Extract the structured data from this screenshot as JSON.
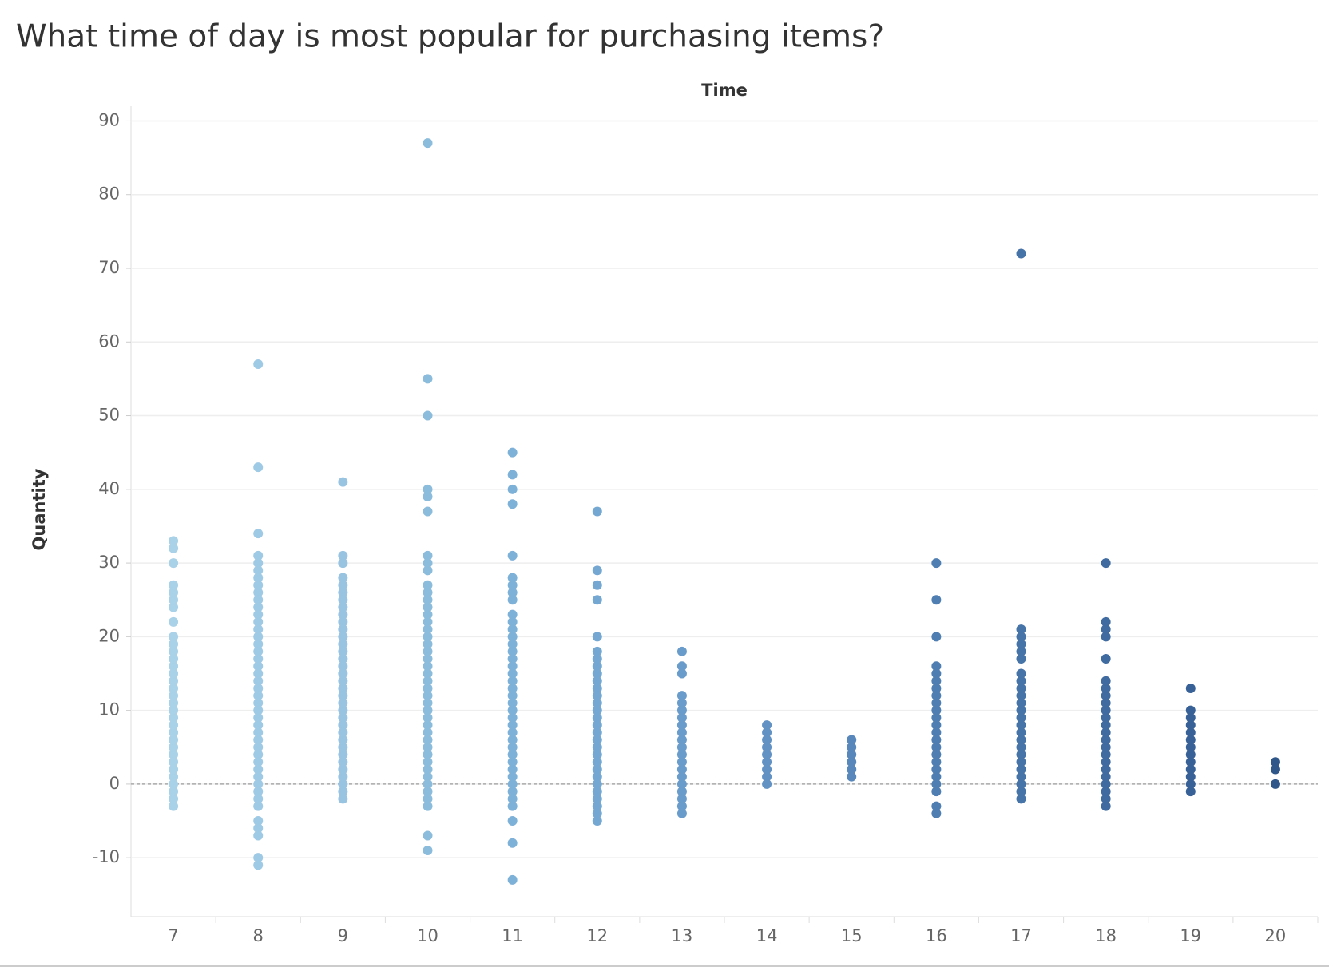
{
  "chart_data": {
    "type": "strip",
    "title": "What time of day is most popular for purchasing items?",
    "x_label": "Time",
    "y_label": "Quantity",
    "categories": [
      "7",
      "8",
      "9",
      "10",
      "11",
      "12",
      "13",
      "14",
      "15",
      "16",
      "17",
      "18",
      "19",
      "20"
    ],
    "colors": [
      "#a9d1e8",
      "#9fcae5",
      "#98c4e1",
      "#8bbcdc",
      "#7eb1d8",
      "#74a8d2",
      "#6a9ccb",
      "#6192c3",
      "#5888bb",
      "#4f7eb2",
      "#4674a9",
      "#3f6ba0",
      "#386297",
      "#2f5789"
    ],
    "values": [
      [
        -3,
        -2,
        -1,
        0,
        1,
        2,
        3,
        4,
        5,
        6,
        7,
        8,
        9,
        10,
        11,
        12,
        13,
        14,
        15,
        16,
        17,
        18,
        19,
        20,
        22,
        24,
        25,
        26,
        27,
        30,
        32,
        33
      ],
      [
        -11,
        -10,
        -7,
        -6,
        -5,
        -3,
        -2,
        -1,
        0,
        1,
        2,
        3,
        4,
        5,
        6,
        7,
        8,
        9,
        10,
        11,
        12,
        13,
        14,
        15,
        16,
        17,
        18,
        19,
        20,
        21,
        22,
        23,
        24,
        25,
        26,
        27,
        28,
        29,
        30,
        31,
        34,
        43,
        57
      ],
      [
        -2,
        -1,
        0,
        1,
        2,
        3,
        4,
        5,
        6,
        7,
        8,
        9,
        10,
        11,
        12,
        13,
        14,
        15,
        16,
        17,
        18,
        19,
        20,
        21,
        22,
        23,
        24,
        25,
        26,
        27,
        28,
        30,
        31,
        41
      ],
      [
        -9,
        -7,
        -3,
        -2,
        -1,
        0,
        1,
        2,
        3,
        4,
        5,
        6,
        7,
        8,
        9,
        10,
        11,
        12,
        13,
        14,
        15,
        16,
        17,
        18,
        19,
        20,
        21,
        22,
        23,
        24,
        25,
        26,
        27,
        29,
        30,
        31,
        37,
        39,
        40,
        50,
        55,
        87
      ],
      [
        -13,
        -8,
        -5,
        -3,
        -2,
        -1,
        0,
        1,
        2,
        3,
        4,
        5,
        6,
        7,
        8,
        9,
        10,
        11,
        12,
        13,
        14,
        15,
        16,
        17,
        18,
        19,
        20,
        21,
        22,
        23,
        25,
        26,
        27,
        28,
        31,
        38,
        40,
        42,
        45
      ],
      [
        -5,
        -4,
        -3,
        -2,
        -1,
        0,
        1,
        2,
        3,
        4,
        5,
        6,
        7,
        8,
        9,
        10,
        11,
        12,
        13,
        14,
        15,
        16,
        17,
        18,
        20,
        25,
        27,
        29,
        37
      ],
      [
        -4,
        -3,
        -2,
        -1,
        0,
        1,
        2,
        3,
        4,
        5,
        6,
        7,
        8,
        9,
        10,
        11,
        12,
        15,
        16,
        18
      ],
      [
        0,
        1,
        2,
        3,
        4,
        5,
        6,
        7,
        8
      ],
      [
        1,
        2,
        3,
        4,
        5,
        6
      ],
      [
        -4,
        -3,
        -1,
        0,
        1,
        2,
        3,
        4,
        5,
        6,
        7,
        8,
        9,
        10,
        11,
        12,
        13,
        14,
        15,
        16,
        20,
        25,
        30
      ],
      [
        -2,
        -1,
        0,
        1,
        2,
        3,
        4,
        5,
        6,
        7,
        8,
        9,
        10,
        11,
        12,
        13,
        14,
        15,
        17,
        18,
        19,
        20,
        21,
        72
      ],
      [
        -3,
        -2,
        -1,
        0,
        1,
        2,
        3,
        4,
        5,
        6,
        7,
        8,
        9,
        10,
        11,
        12,
        13,
        14,
        17,
        20,
        21,
        22,
        30
      ],
      [
        -1,
        0,
        1,
        2,
        3,
        4,
        5,
        6,
        7,
        8,
        9,
        10,
        13
      ],
      [
        0,
        2,
        3
      ]
    ],
    "ylim": [
      -18,
      92
    ],
    "yticks": [
      -10,
      0,
      10,
      20,
      30,
      40,
      50,
      60,
      70,
      80,
      90
    ],
    "grid": true
  }
}
